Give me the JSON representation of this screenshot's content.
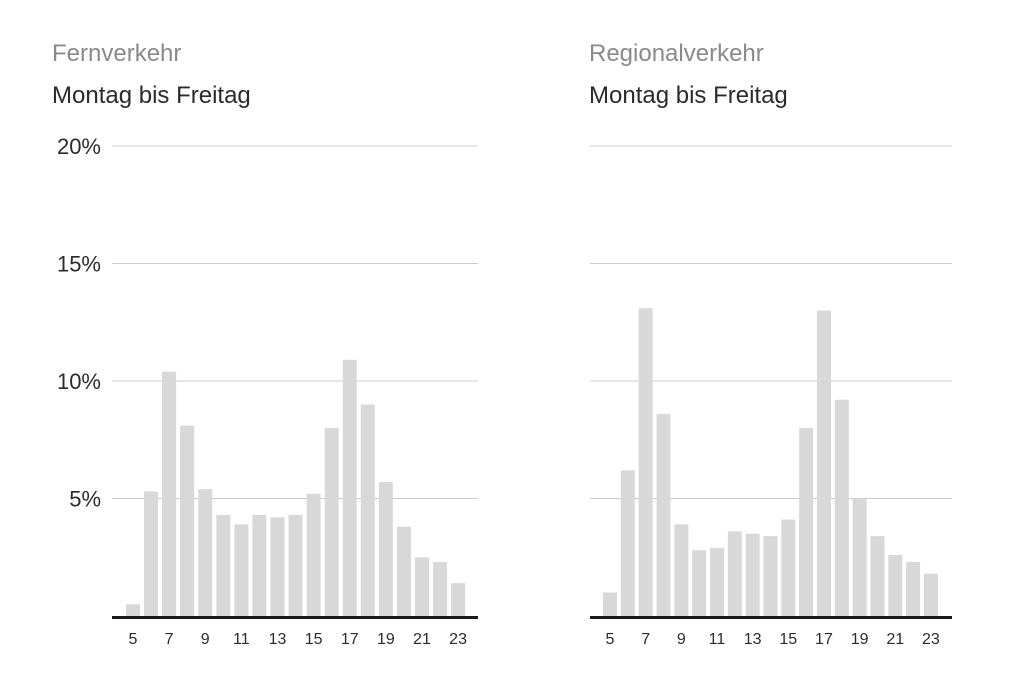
{
  "colors": {
    "bar": "#d8d8d8",
    "grid": "#cccccc",
    "baseline": "#1a1a1a",
    "title": "#8a8a8a",
    "text": "#2b2b2b"
  },
  "chart_data": [
    {
      "type": "bar",
      "title": "Fernverkehr",
      "subtitle": "Montag bis Freitag",
      "x": [
        5,
        6,
        7,
        8,
        9,
        10,
        11,
        12,
        13,
        14,
        15,
        16,
        17,
        18,
        19,
        20,
        21,
        22,
        23
      ],
      "x_tick_labels": [
        "5",
        "7",
        "9",
        "11",
        "13",
        "15",
        "17",
        "19",
        "21",
        "23"
      ],
      "values": [
        0.5,
        5.3,
        10.4,
        8.1,
        5.4,
        4.3,
        3.9,
        4.3,
        4.2,
        4.3,
        5.2,
        8.0,
        10.9,
        9.0,
        5.7,
        3.8,
        2.5,
        2.3,
        1.4
      ],
      "ylim": [
        0,
        20
      ],
      "y_ticks": [
        5,
        10,
        15,
        20
      ],
      "y_tick_labels": [
        "5%",
        "10%",
        "15%",
        "20%"
      ],
      "grid": true
    },
    {
      "type": "bar",
      "title": "Regionalverkehr",
      "subtitle": "Montag bis Freitag",
      "x": [
        5,
        6,
        7,
        8,
        9,
        10,
        11,
        12,
        13,
        14,
        15,
        16,
        17,
        18,
        19,
        20,
        21,
        22,
        23
      ],
      "x_tick_labels": [
        "5",
        "7",
        "9",
        "11",
        "13",
        "15",
        "17",
        "19",
        "21",
        "23"
      ],
      "values": [
        1.0,
        6.2,
        13.1,
        8.6,
        3.9,
        2.8,
        2.9,
        3.6,
        3.5,
        3.4,
        4.1,
        8.0,
        13.0,
        9.2,
        5.0,
        3.4,
        2.6,
        2.3,
        1.8
      ],
      "ylim": [
        0,
        20
      ],
      "y_ticks": [
        5,
        10,
        15,
        20
      ],
      "grid": true
    }
  ]
}
